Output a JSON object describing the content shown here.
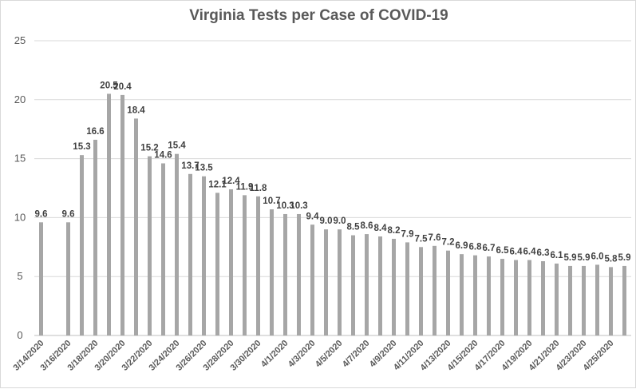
{
  "chart_data": {
    "type": "bar",
    "title": "Virginia Tests per Case of COVID-19",
    "xlabel": "",
    "ylabel": "",
    "ylim": [
      0,
      25
    ],
    "yticks": [
      0,
      5,
      10,
      15,
      20,
      25
    ],
    "grid": true,
    "legend": "none",
    "bar_color": "#a6a6a6",
    "gridline_color": "#d9d9d9",
    "categories": [
      "3/14/2020",
      "3/15/2020",
      "3/16/2020",
      "3/17/2020",
      "3/18/2020",
      "3/19/2020",
      "3/20/2020",
      "3/21/2020",
      "3/22/2020",
      "3/23/2020",
      "3/24/2020",
      "3/25/2020",
      "3/26/2020",
      "3/27/2020",
      "3/28/2020",
      "3/29/2020",
      "3/30/2020",
      "3/31/2020",
      "4/1/2020",
      "4/2/2020",
      "4/3/2020",
      "4/4/2020",
      "4/5/2020",
      "4/6/2020",
      "4/7/2020",
      "4/8/2020",
      "4/9/2020",
      "4/10/2020",
      "4/11/2020",
      "4/12/2020",
      "4/13/2020",
      "4/14/2020",
      "4/15/2020",
      "4/16/2020",
      "4/17/2020",
      "4/18/2020",
      "4/19/2020",
      "4/20/2020",
      "4/21/2020",
      "4/22/2020",
      "4/23/2020",
      "4/24/2020",
      "4/25/2020",
      "4/26/2020"
    ],
    "tick_labels": [
      "3/14/2020",
      "",
      "3/16/2020",
      "",
      "3/18/2020",
      "",
      "3/20/2020",
      "",
      "3/22/2020",
      "",
      "3/24/2020",
      "",
      "3/26/2020",
      "",
      "3/28/2020",
      "",
      "3/30/2020",
      "",
      "4/1/2020",
      "",
      "4/3/2020",
      "",
      "4/5/2020",
      "",
      "4/7/2020",
      "",
      "4/9/2020",
      "",
      "4/11/2020",
      "",
      "4/13/2020",
      "",
      "4/15/2020",
      "",
      "4/17/2020",
      "",
      "4/19/2020",
      "",
      "4/21/2020",
      "",
      "4/23/2020",
      "",
      "4/25/2020",
      ""
    ],
    "values": [
      9.6,
      null,
      9.6,
      15.3,
      16.6,
      20.5,
      20.4,
      18.4,
      15.2,
      14.6,
      15.4,
      13.7,
      13.5,
      12.1,
      12.4,
      11.9,
      11.8,
      10.7,
      10.3,
      10.3,
      9.4,
      9.0,
      9.0,
      8.5,
      8.6,
      8.4,
      8.2,
      7.9,
      7.5,
      7.6,
      7.2,
      6.9,
      6.8,
      6.7,
      6.5,
      6.4,
      6.4,
      6.3,
      6.1,
      5.9,
      5.9,
      6.0,
      5.8,
      5.9
    ],
    "labels": [
      "9.6",
      "",
      "9.6",
      "15.3",
      "16.6",
      "20.5",
      "20.4",
      "18.4",
      "15.2",
      "14.6",
      "15.4",
      "13.7",
      "13.5",
      "12.1",
      "12.4",
      "11.9",
      "11.8",
      "10.7",
      "10.3",
      "10.3",
      "9.4",
      "9.0",
      "9.0",
      "8.5",
      "8.6",
      "8.4",
      "8.2",
      "7.9",
      "7.5",
      "7.6",
      "7.2",
      "6.9",
      "6.8",
      "6.7",
      "6.5",
      "6.4",
      "6.4",
      "6.3",
      "6.1",
      "5.9",
      "5.9",
      "6.0",
      "5.8",
      "5.9"
    ]
  }
}
